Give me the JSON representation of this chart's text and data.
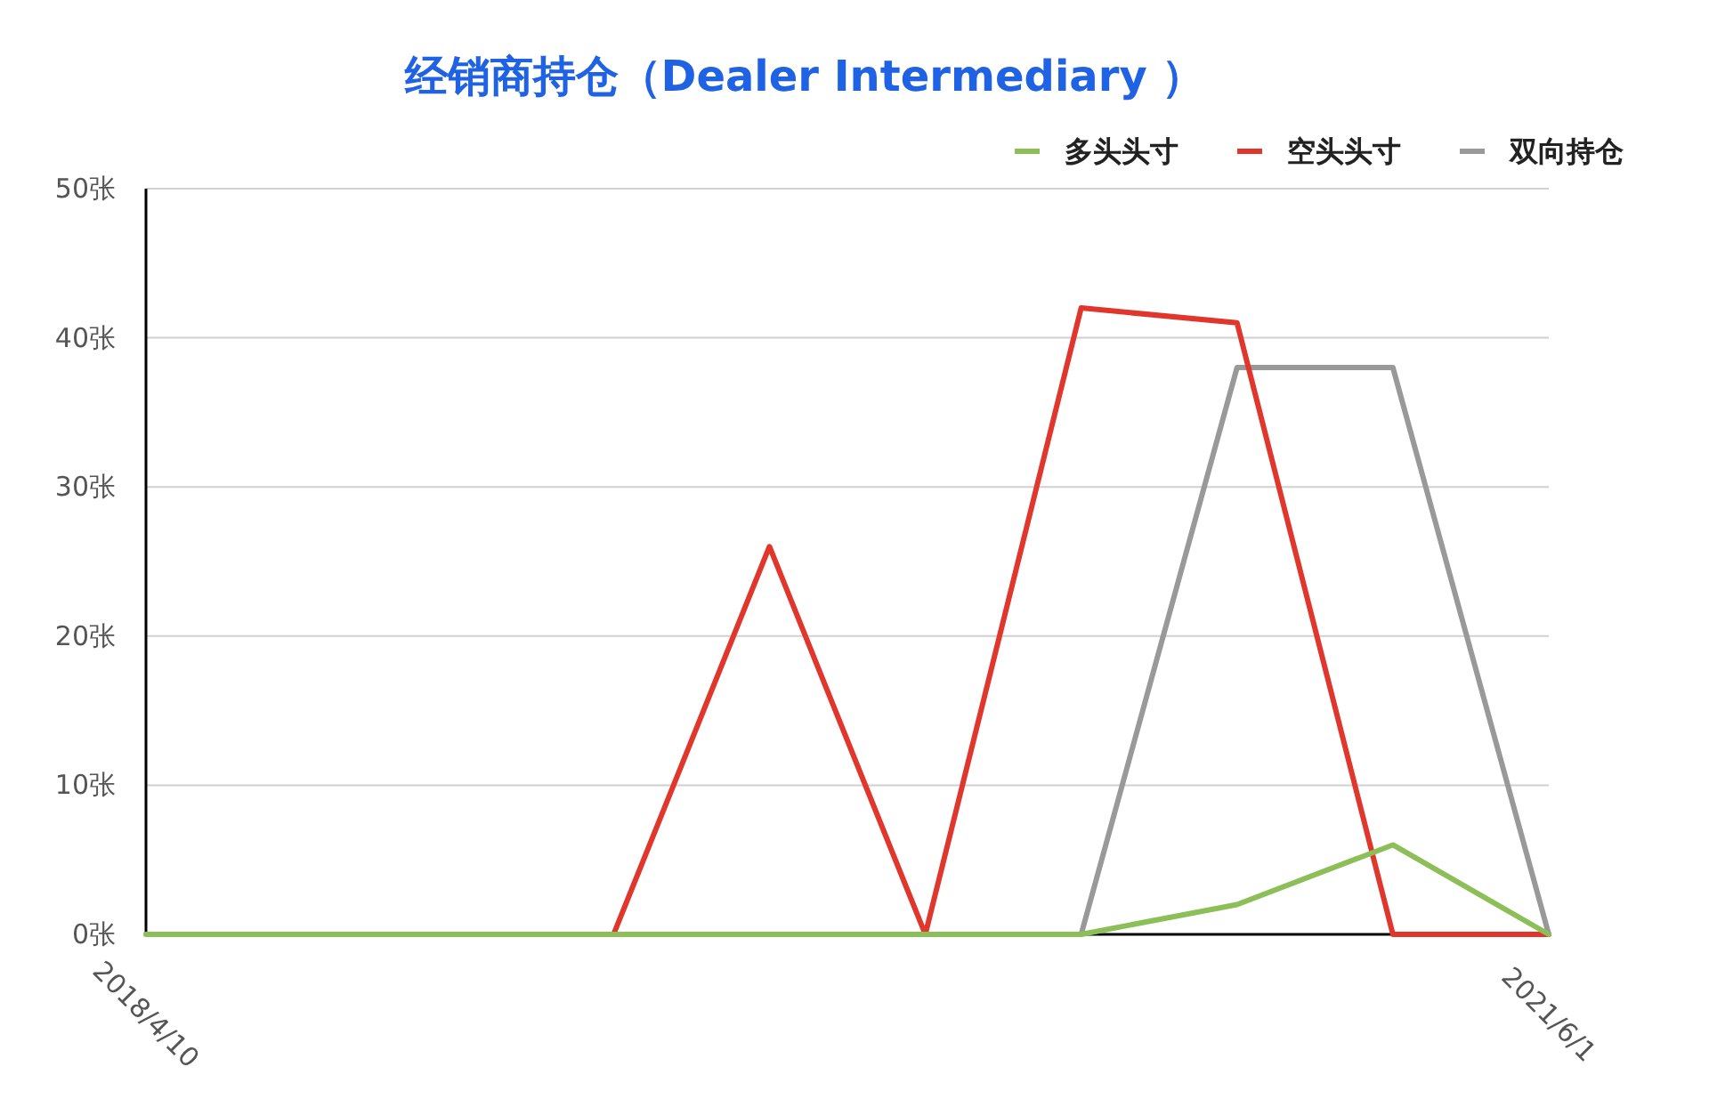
{
  "chart_data": {
    "type": "line",
    "title": "经销商持仓（Dealer Intermediary ）",
    "categories": [
      "2018/4/10",
      null,
      null,
      null,
      null,
      null,
      null,
      null,
      null,
      "2021/6/1"
    ],
    "series": [
      {
        "name": "多头头寸",
        "color": "#8dbf59",
        "values": [
          0,
          0,
          0,
          0,
          0,
          0,
          0,
          2,
          6,
          0
        ]
      },
      {
        "name": "空头头寸",
        "color": "#e0362c",
        "values": [
          null,
          null,
          null,
          0,
          26,
          0,
          42,
          41,
          0,
          0
        ]
      },
      {
        "name": "双向持仓",
        "color": "#999999",
        "values": [
          null,
          null,
          null,
          null,
          null,
          null,
          0,
          38,
          38,
          0
        ]
      }
    ],
    "ylim": [
      0,
      50
    ],
    "yticks": [
      {
        "value": 0,
        "label": "0张"
      },
      {
        "value": 10,
        "label": "10张"
      },
      {
        "value": 20,
        "label": "20张"
      },
      {
        "value": 30,
        "label": "30张"
      },
      {
        "value": 40,
        "label": "40张"
      },
      {
        "value": 50,
        "label": "50张"
      }
    ],
    "grid": "y",
    "legend": "top right",
    "line_style": "solid"
  }
}
